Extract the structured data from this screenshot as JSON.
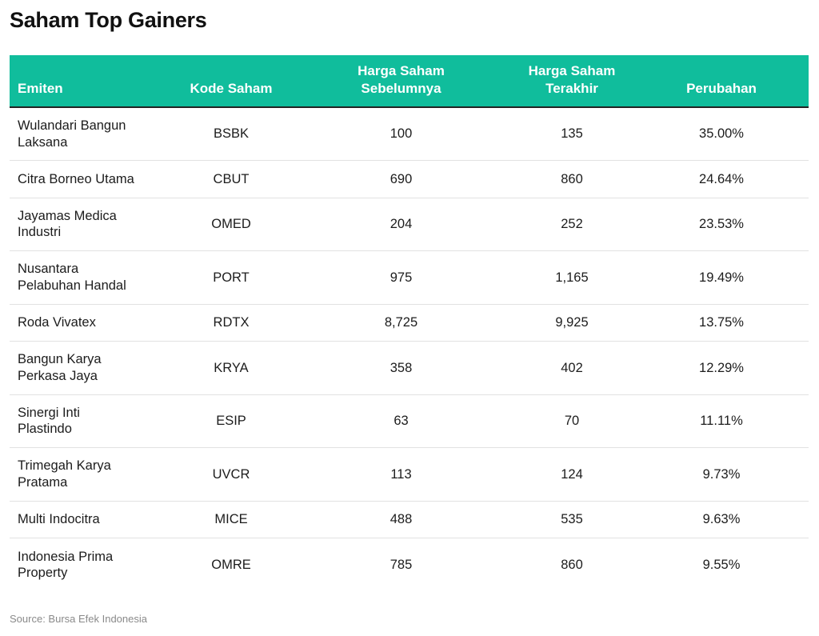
{
  "title": "Saham Top Gainers",
  "source": "Source: Bursa Efek Indonesia",
  "colors": {
    "header_bg": "#10bd9c",
    "header_text": "#ffffff"
  },
  "chart_data": {
    "type": "table",
    "title": "Saham Top Gainers",
    "columns": [
      "Emiten",
      "Kode Saham",
      "Harga Saham Sebelumnya",
      "Harga Saham Terakhir",
      "Perubahan"
    ],
    "header_lines": [
      [
        "Emiten"
      ],
      [
        "Kode Saham"
      ],
      [
        "Harga Saham",
        "Sebelumnya"
      ],
      [
        "Harga Saham",
        "Terakhir"
      ],
      [
        "Perubahan"
      ]
    ],
    "rows": [
      [
        "Wulandari Bangun Laksana",
        "BSBK",
        "100",
        "135",
        "35.00%"
      ],
      [
        "Citra Borneo Utama",
        "CBUT",
        "690",
        "860",
        "24.64%"
      ],
      [
        "Jayamas Medica Industri",
        "OMED",
        "204",
        "252",
        "23.53%"
      ],
      [
        "Nusantara Pelabuhan Handal",
        "PORT",
        "975",
        "1,165",
        "19.49%"
      ],
      [
        "Roda Vivatex",
        "RDTX",
        "8,725",
        "9,925",
        "13.75%"
      ],
      [
        "Bangun Karya Perkasa Jaya",
        "KRYA",
        "358",
        "402",
        "12.29%"
      ],
      [
        "Sinergi Inti Plastindo",
        "ESIP",
        "63",
        "70",
        "11.11%"
      ],
      [
        "Trimegah Karya Pratama",
        "UVCR",
        "113",
        "124",
        "9.73%"
      ],
      [
        "Multi Indocitra",
        "MICE",
        "488",
        "535",
        "9.63%"
      ],
      [
        "Indonesia Prima Property",
        "OMRE",
        "785",
        "860",
        "9.55%"
      ]
    ],
    "name_lines": [
      [
        "Wulandari Bangun",
        "Laksana"
      ],
      [
        "Citra Borneo Utama"
      ],
      [
        "Jayamas Medica",
        "Industri"
      ],
      [
        "Nusantara",
        "Pelabuhan Handal"
      ],
      [
        "Roda Vivatex"
      ],
      [
        "Bangun Karya",
        "Perkasa Jaya"
      ],
      [
        "Sinergi Inti",
        "Plastindo"
      ],
      [
        "Trimegah Karya",
        "Pratama"
      ],
      [
        "Multi Indocitra"
      ],
      [
        "Indonesia Prima",
        "Property"
      ]
    ]
  }
}
